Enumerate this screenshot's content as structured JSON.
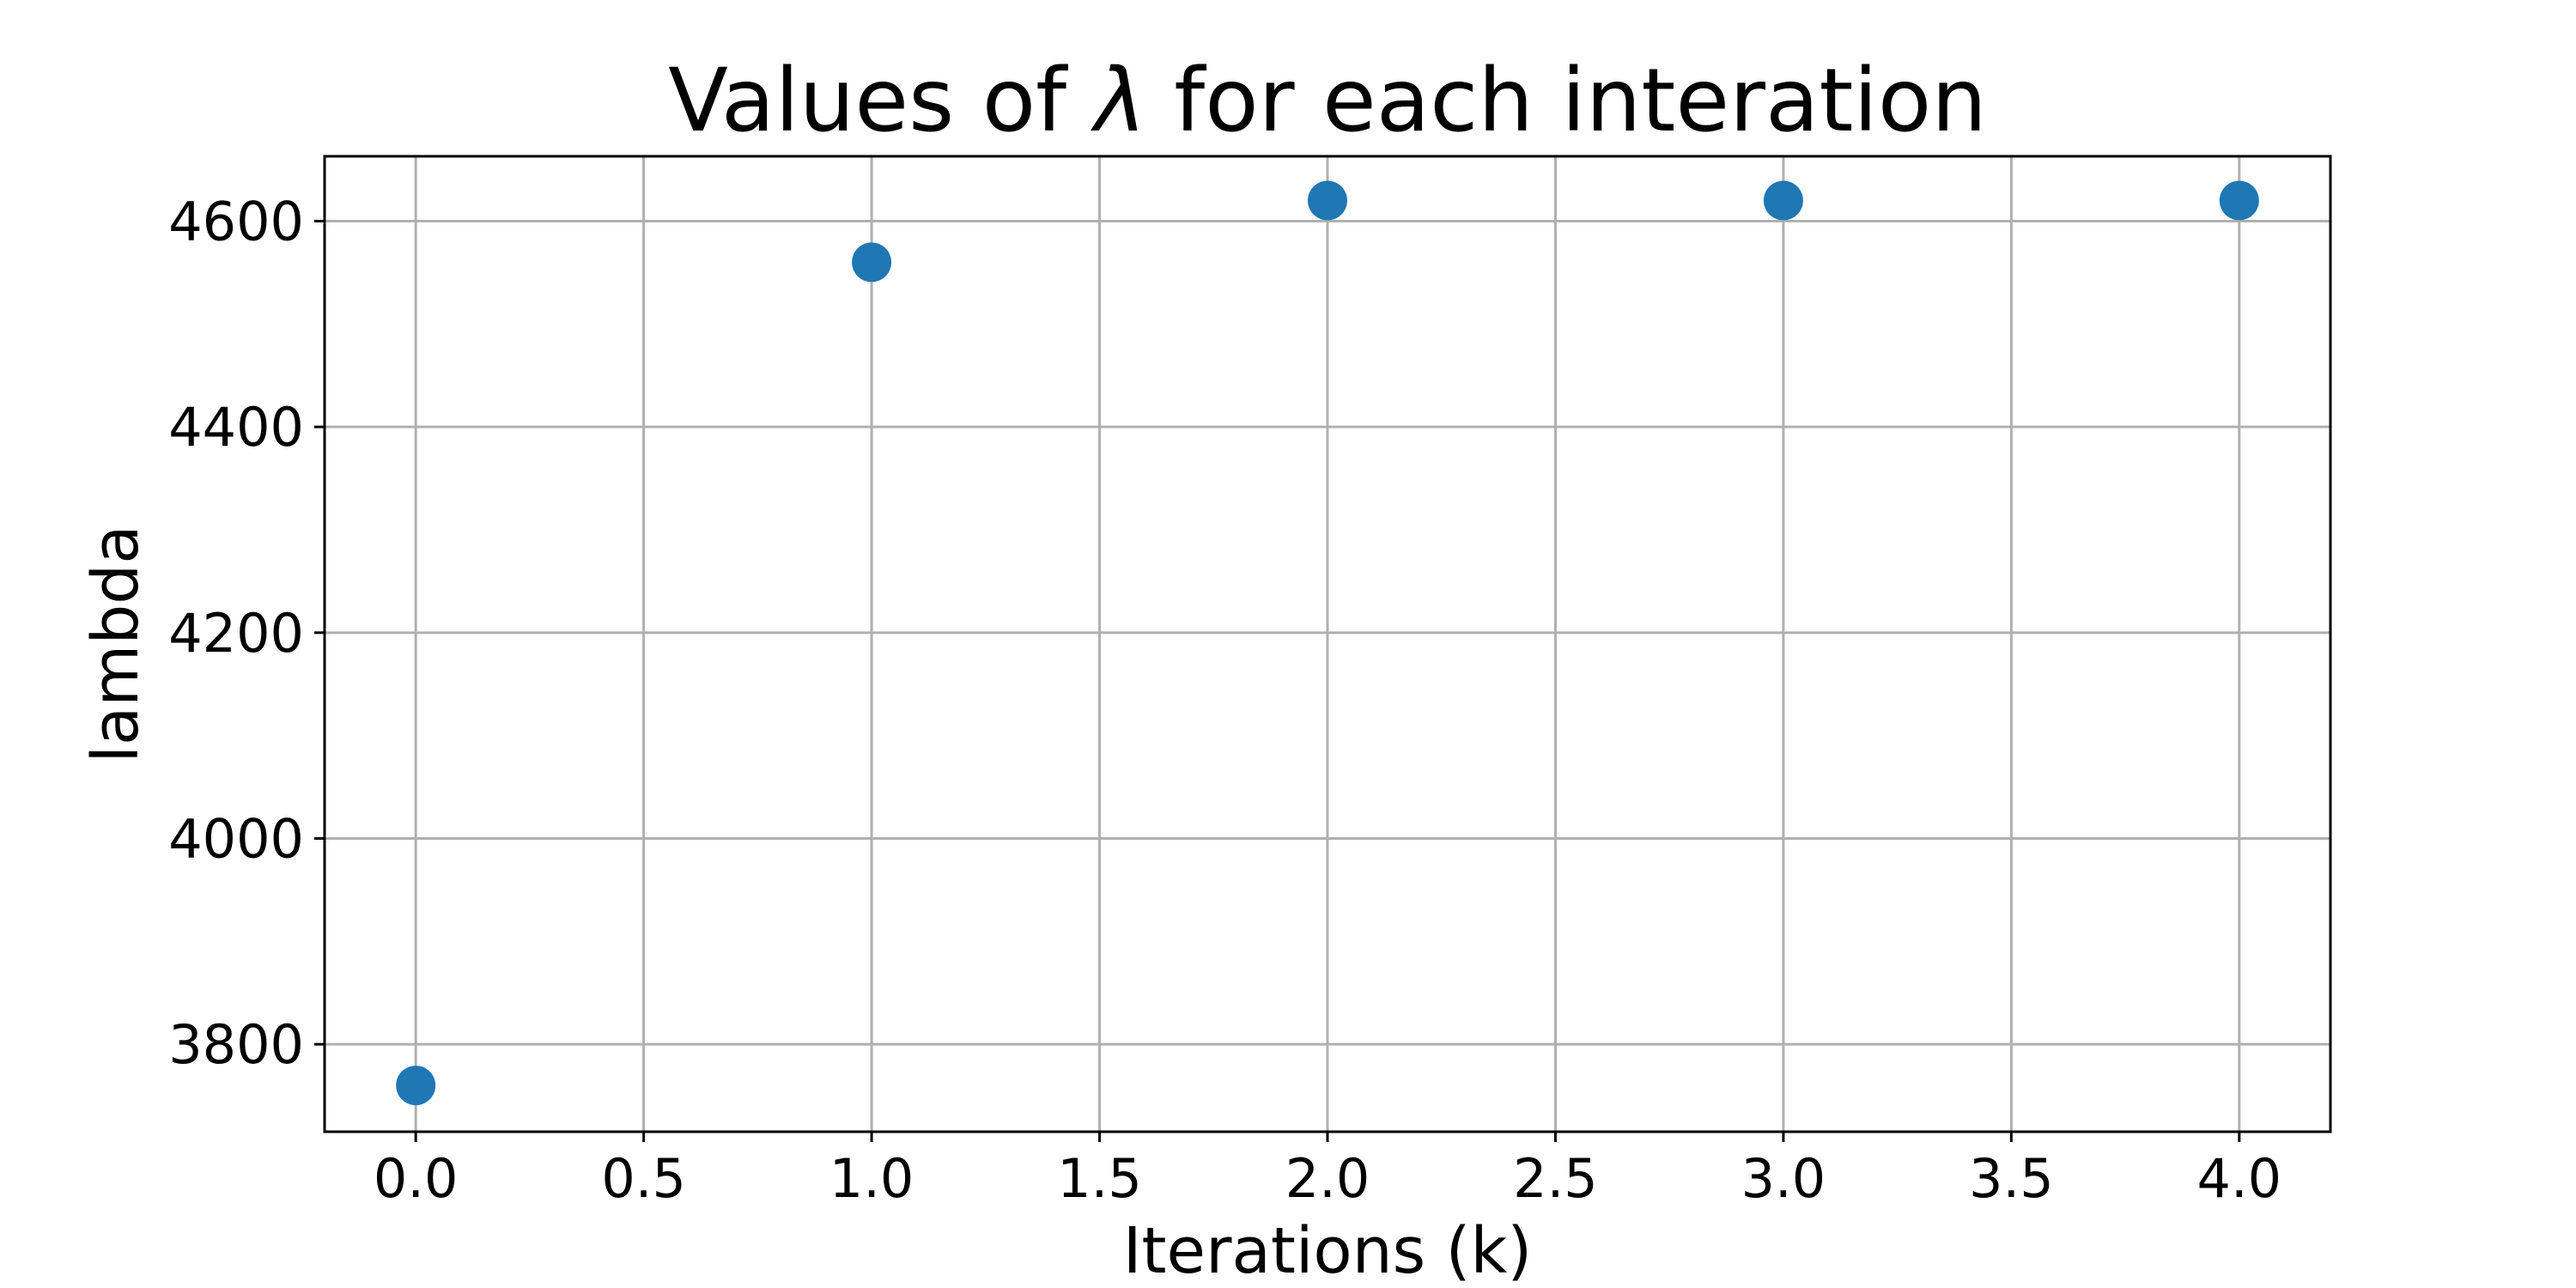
{
  "chart_data": {
    "type": "scatter",
    "title": {
      "prefix": "Values of ",
      "symbol": "λ",
      "suffix": " for each interation"
    },
    "xlabel": "Iterations (k)",
    "ylabel": "lambda",
    "xlim": [
      -0.2,
      4.2
    ],
    "ylim": [
      3715,
      4663
    ],
    "x_ticks": [
      {
        "value": 0.0,
        "label": "0.0"
      },
      {
        "value": 0.5,
        "label": "0.5"
      },
      {
        "value": 1.0,
        "label": "1.0"
      },
      {
        "value": 1.5,
        "label": "1.5"
      },
      {
        "value": 2.0,
        "label": "2.0"
      },
      {
        "value": 2.5,
        "label": "2.5"
      },
      {
        "value": 3.0,
        "label": "3.0"
      },
      {
        "value": 3.5,
        "label": "3.5"
      },
      {
        "value": 4.0,
        "label": "4.0"
      }
    ],
    "y_ticks": [
      {
        "value": 3800,
        "label": "3800"
      },
      {
        "value": 4000,
        "label": "4000"
      },
      {
        "value": 4200,
        "label": "4200"
      },
      {
        "value": 4400,
        "label": "4400"
      },
      {
        "value": 4600,
        "label": "4600"
      }
    ],
    "grid": true,
    "series": [
      {
        "color": "#1f77b4",
        "x": [
          0,
          1,
          2,
          3,
          4
        ],
        "y": [
          3760,
          4560,
          4620,
          4620,
          4620
        ]
      }
    ]
  }
}
